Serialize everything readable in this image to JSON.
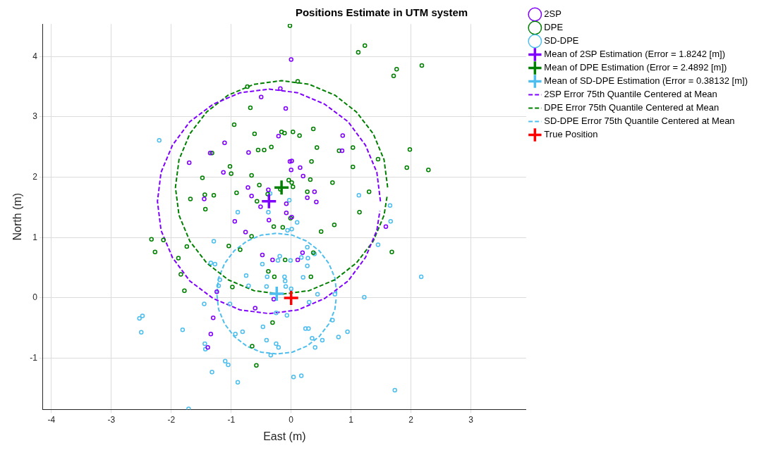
{
  "chart_data": {
    "type": "scatter",
    "title": "Positions Estimate in UTM system",
    "xlabel": "East (m)",
    "ylabel": "North (m)",
    "xlim": [
      -4.14,
      3.92
    ],
    "ylim": [
      -1.85,
      4.54
    ],
    "xticks": [
      -4,
      -3,
      -2,
      -1,
      0,
      1,
      2,
      3
    ],
    "yticks": [
      -1,
      0,
      1,
      2,
      3,
      4
    ],
    "grid": true,
    "legend": "top right",
    "series": [
      {
        "name": "2SP",
        "type": "scatter",
        "marker": "circle",
        "color": "#7f00ff",
        "x": [
          0.0,
          -0.18,
          -0.5,
          -0.09,
          0.86,
          0.85,
          -1.11,
          -1.35,
          -0.71,
          -1.7,
          -0.02,
          0.01,
          0.0,
          0.15,
          -1.13,
          0.2,
          0.39,
          0.27,
          0.42,
          -0.72,
          -0.66,
          -1.45,
          -0.38,
          -0.51,
          -0.08,
          -0.08,
          0.01,
          -0.37,
          -0.94,
          -0.76,
          -0.48,
          -0.31,
          0.11,
          0.19,
          -1.24,
          -0.29,
          -0.6,
          -1.3,
          -1.34,
          -1.39,
          1.58,
          -0.21
        ],
        "values": [
          3.95,
          3.47,
          3.33,
          3.14,
          2.69,
          2.44,
          2.57,
          2.4,
          2.41,
          2.24,
          2.26,
          2.27,
          2.12,
          2.16,
          2.08,
          2.02,
          1.76,
          1.66,
          1.59,
          1.83,
          1.69,
          1.64,
          1.79,
          1.51,
          1.56,
          1.41,
          1.34,
          1.29,
          1.27,
          1.09,
          0.71,
          0.63,
          0.63,
          0.75,
          0.1,
          -0.02,
          -0.17,
          -0.33,
          -0.6,
          -0.82,
          1.18,
          2.68
        ]
      },
      {
        "name": "DPE",
        "type": "scatter",
        "marker": "circle",
        "color": "#008000",
        "x": [
          -0.02,
          1.23,
          1.12,
          2.18,
          1.76,
          1.71,
          0.11,
          -0.73,
          -0.68,
          -0.95,
          -0.61,
          -0.16,
          -0.11,
          0.03,
          0.14,
          0.37,
          0.43,
          1.03,
          0.8,
          1.03,
          1.45,
          1.98,
          1.93,
          2.29,
          0.34,
          0.32,
          0.27,
          0.69,
          1.3,
          1.14,
          -0.55,
          -0.45,
          -0.33,
          -1.32,
          -1.02,
          -1.0,
          -0.66,
          -1.48,
          -0.53,
          -0.04,
          0.01,
          0.03,
          -0.91,
          -1.44,
          -1.29,
          -1.68,
          -1.43,
          -0.57,
          -0.39,
          -0.18,
          -0.01,
          -0.29,
          -0.14,
          -0.66,
          0.5,
          -2.33,
          -2.13,
          -2.27,
          -1.74,
          -1.88,
          -1.84,
          -1.78,
          -1.04,
          -0.85,
          -0.1,
          0.37,
          -0.38,
          -0.28,
          0.33,
          -0.98,
          -0.31,
          -0.65,
          -0.58,
          0.72,
          1.68
        ],
        "values": [
          4.51,
          4.18,
          4.07,
          3.85,
          3.79,
          3.68,
          3.59,
          3.5,
          3.15,
          2.87,
          2.72,
          2.75,
          2.73,
          2.75,
          2.69,
          2.8,
          2.49,
          2.49,
          2.44,
          2.17,
          2.3,
          2.46,
          2.16,
          2.12,
          2.26,
          1.96,
          1.76,
          1.91,
          1.76,
          1.42,
          2.45,
          2.45,
          2.5,
          2.4,
          2.18,
          2.06,
          2.03,
          1.99,
          1.87,
          1.95,
          1.91,
          1.84,
          1.74,
          1.71,
          1.7,
          1.64,
          1.47,
          1.6,
          1.72,
          1.8,
          1.32,
          1.18,
          1.17,
          1.02,
          1.1,
          0.97,
          0.96,
          0.76,
          0.85,
          0.66,
          0.39,
          0.12,
          0.86,
          0.8,
          0.63,
          0.75,
          0.44,
          0.35,
          0.35,
          0.18,
          -0.41,
          -0.8,
          -1.12,
          1.21,
          0.76
        ]
      },
      {
        "name": "SD-DPE",
        "type": "scatter",
        "marker": "circle",
        "color": "#4dbeee",
        "x": [
          -2.2,
          -0.35,
          -0.03,
          -0.89,
          -0.38,
          1.13,
          1.65,
          1.66,
          0.1,
          -0.06,
          0.01,
          -1.29,
          0.27,
          0.39,
          -0.19,
          -0.22,
          -0.01,
          0.17,
          0.28,
          0.27,
          -0.48,
          -1.34,
          -1.27,
          -0.75,
          -0.4,
          -0.11,
          -0.1,
          0.2,
          -1.19,
          -1.21,
          -0.71,
          -0.41,
          -0.09,
          0.0,
          0.44,
          -1.45,
          -1.02,
          0.3,
          -0.25,
          -0.07,
          -2.53,
          -2.48,
          -2.5,
          -1.81,
          -0.47,
          -0.93,
          -0.81,
          0.24,
          0.29,
          -0.41,
          -0.25,
          -0.21,
          0.35,
          0.52,
          0.4,
          -1.44,
          -1.43,
          -0.34,
          -1.1,
          -1.05,
          -1.32,
          -0.89,
          0.04,
          0.17,
          -1.71,
          1.45,
          2.17,
          1.22,
          0.73,
          0.69,
          0.94,
          0.79,
          1.73
        ],
        "values": [
          2.61,
          1.73,
          1.62,
          1.42,
          1.42,
          1.7,
          1.53,
          1.27,
          1.25,
          1.12,
          1.14,
          0.94,
          0.84,
          0.73,
          0.69,
          0.62,
          0.62,
          0.67,
          0.66,
          0.53,
          0.56,
          0.58,
          0.56,
          0.37,
          0.35,
          0.35,
          0.28,
          0.34,
          0.3,
          0.2,
          0.2,
          0.19,
          0.19,
          0.15,
          0.06,
          -0.1,
          -0.1,
          -0.07,
          -0.25,
          -0.29,
          -0.34,
          -0.3,
          -0.57,
          -0.53,
          -0.48,
          -0.6,
          -0.56,
          -0.51,
          -0.51,
          -0.7,
          -0.76,
          -0.82,
          -0.67,
          -0.7,
          -0.82,
          -0.76,
          -0.85,
          -0.95,
          -1.05,
          -1.11,
          -1.23,
          -1.4,
          -1.31,
          -1.29,
          -1.84,
          0.88,
          0.35,
          0.01,
          0.06,
          -0.37,
          -0.56,
          -0.65,
          -1.53
        ]
      },
      {
        "name": "Mean of 2SP Estimation (Error = 1.8242 [m])",
        "type": "scatter",
        "marker": "cross",
        "color": "#7f00ff",
        "x": [
          -0.37
        ],
        "values": [
          1.6
        ]
      },
      {
        "name": "Mean of DPE Estimation (Error = 2.4892 [m])",
        "type": "scatter",
        "marker": "cross",
        "color": "#008000",
        "x": [
          -0.16
        ],
        "values": [
          1.83
        ]
      },
      {
        "name": "Mean of SD-DPE Estimation (Error = 0.38132 [m])",
        "type": "scatter",
        "marker": "cross",
        "color": "#4dbeee",
        "x": [
          -0.24
        ],
        "values": [
          0.07
        ]
      },
      {
        "name": "2SP Error 75th Quantile Centered at Mean",
        "type": "line",
        "marker": "none",
        "line_style": "dashed",
        "color": "#7f00ff",
        "x": [
          1.49,
          1.43,
          1.24,
          0.95,
          0.56,
          0.11,
          -0.37,
          -0.85,
          -1.3,
          -1.69,
          -1.98,
          -2.17,
          -2.23,
          -2.17,
          -1.98,
          -1.69,
          -1.3,
          -0.85,
          -0.37,
          0.11,
          0.56,
          0.95,
          1.24,
          1.43,
          1.48
        ],
        "values": [
          1.6,
          2.08,
          2.53,
          2.92,
          3.21,
          3.4,
          3.46,
          3.4,
          3.21,
          2.92,
          2.53,
          2.08,
          1.6,
          1.12,
          0.67,
          0.28,
          -0.01,
          -0.2,
          -0.26,
          -0.2,
          -0.01,
          0.28,
          0.67,
          1.12,
          1.44
        ]
      },
      {
        "name": "DPE Error 75th Quantile Centered at Mean",
        "type": "line",
        "marker": "none",
        "line_style": "dashed",
        "color": "#008000",
        "x": [
          1.61,
          1.55,
          1.37,
          1.09,
          0.73,
          0.3,
          -0.16,
          -0.62,
          -1.05,
          -1.41,
          -1.69,
          -1.87,
          -1.93,
          -1.87,
          -1.69,
          -1.41,
          -1.05,
          -0.62,
          -0.16,
          0.3,
          0.73,
          1.09,
          1.37,
          1.55,
          1.6
        ],
        "values": [
          1.83,
          2.29,
          2.72,
          3.08,
          3.36,
          3.54,
          3.6,
          3.54,
          3.36,
          3.08,
          2.72,
          2.29,
          1.83,
          1.37,
          0.94,
          0.58,
          0.3,
          0.12,
          0.06,
          0.12,
          0.3,
          0.58,
          0.94,
          1.37,
          1.68
        ]
      },
      {
        "name": "SD-DPE Error 75th Quantile Centered at Mean",
        "type": "line",
        "marker": "none",
        "line_style": "dashed",
        "color": "#4dbeee",
        "x": [
          0.76,
          0.73,
          0.63,
          0.47,
          0.26,
          0.02,
          -0.24,
          -0.5,
          -0.74,
          -0.95,
          -1.11,
          -1.21,
          -1.24,
          -1.21,
          -1.11,
          -0.95,
          -0.74,
          -0.5,
          -0.24,
          0.02,
          0.26,
          0.47,
          0.63,
          0.73,
          0.75
        ],
        "values": [
          0.07,
          0.33,
          0.57,
          0.78,
          0.94,
          1.04,
          1.07,
          1.04,
          0.94,
          0.78,
          0.57,
          0.33,
          0.07,
          -0.19,
          -0.43,
          -0.64,
          -0.8,
          -0.9,
          -0.93,
          -0.9,
          -0.8,
          -0.64,
          -0.43,
          -0.19,
          -0.02
        ]
      },
      {
        "name": "True Position",
        "type": "scatter",
        "marker": "cross",
        "color": "#ff0000",
        "x": [
          0
        ],
        "values": [
          0
        ]
      }
    ]
  }
}
